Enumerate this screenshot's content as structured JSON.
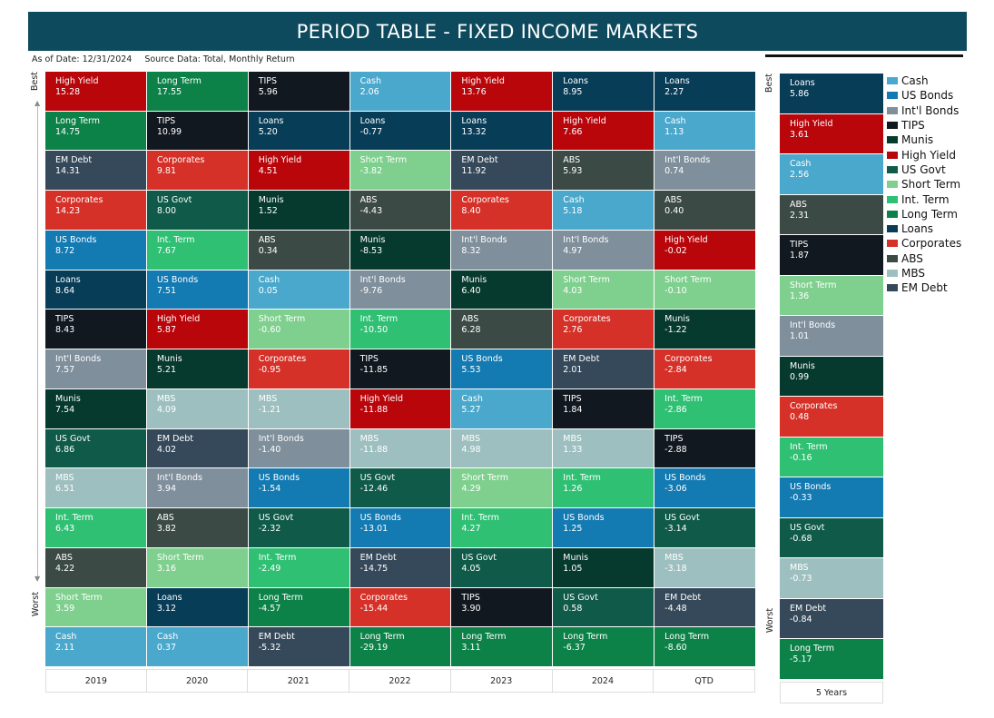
{
  "title": "PERIOD TABLE - FIXED INCOME MARKETS",
  "as_of": "As of Date: 12/31/2024",
  "source": "Source Data: Total, Monthly Return",
  "axis": {
    "best": "Best",
    "worst": "Worst"
  },
  "colors": {
    "Cash": "#4aa8cc",
    "US Bonds": "#137ab2",
    "Int'l Bonds": "#7f8f9c",
    "TIPS": "#12181f",
    "Munis": "#073a2e",
    "High Yield": "#b8060b",
    "US Govt": "#0f5a48",
    "Short Term": "#7fd08e",
    "Int. Term": "#30c074",
    "Long Term": "#0d8248",
    "Loans": "#083d58",
    "Corporates": "#d53128",
    "ABS": "#3c4a46",
    "MBS": "#9ebfbf",
    "EM Debt": "#36495a"
  },
  "legend": [
    "Cash",
    "US Bonds",
    "Int'l Bonds",
    "TIPS",
    "Munis",
    "High Yield",
    "US Govt",
    "Short Term",
    "Int. Term",
    "Long Term",
    "Loans",
    "Corporates",
    "ABS",
    "MBS",
    "EM Debt"
  ],
  "chart_data": {
    "type": "table",
    "title": "PERIOD TABLE - FIXED INCOME MARKETS",
    "columns": [
      {
        "label": "2019",
        "items": [
          {
            "name": "High Yield",
            "value": "15.28"
          },
          {
            "name": "Long Term",
            "value": "14.75"
          },
          {
            "name": "EM Debt",
            "value": "14.31"
          },
          {
            "name": "Corporates",
            "value": "14.23"
          },
          {
            "name": "US Bonds",
            "value": "8.72"
          },
          {
            "name": "Loans",
            "value": "8.64"
          },
          {
            "name": "TIPS",
            "value": "8.43"
          },
          {
            "name": "Int'l Bonds",
            "value": "7.57"
          },
          {
            "name": "Munis",
            "value": "7.54"
          },
          {
            "name": "US Govt",
            "value": "6.86"
          },
          {
            "name": "MBS",
            "value": "6.51"
          },
          {
            "name": "Int. Term",
            "value": "6.43"
          },
          {
            "name": "ABS",
            "value": "4.22"
          },
          {
            "name": "Short Term",
            "value": "3.59"
          },
          {
            "name": "Cash",
            "value": "2.11"
          }
        ]
      },
      {
        "label": "2020",
        "items": [
          {
            "name": "Long Term",
            "value": "17.55"
          },
          {
            "name": "TIPS",
            "value": "10.99"
          },
          {
            "name": "Corporates",
            "value": "9.81"
          },
          {
            "name": "US Govt",
            "value": "8.00"
          },
          {
            "name": "Int. Term",
            "value": "7.67"
          },
          {
            "name": "US Bonds",
            "value": "7.51"
          },
          {
            "name": "High Yield",
            "value": "5.87"
          },
          {
            "name": "Munis",
            "value": "5.21"
          },
          {
            "name": "MBS",
            "value": "4.09"
          },
          {
            "name": "EM Debt",
            "value": "4.02"
          },
          {
            "name": "Int'l Bonds",
            "value": "3.94"
          },
          {
            "name": "ABS",
            "value": "3.82"
          },
          {
            "name": "Short Term",
            "value": "3.16"
          },
          {
            "name": "Loans",
            "value": "3.12"
          },
          {
            "name": "Cash",
            "value": "0.37"
          }
        ]
      },
      {
        "label": "2021",
        "items": [
          {
            "name": "TIPS",
            "value": "5.96"
          },
          {
            "name": "Loans",
            "value": "5.20"
          },
          {
            "name": "High Yield",
            "value": "4.51"
          },
          {
            "name": "Munis",
            "value": "1.52"
          },
          {
            "name": "ABS",
            "value": "0.34"
          },
          {
            "name": "Cash",
            "value": "0.05"
          },
          {
            "name": "Short Term",
            "value": "-0.60"
          },
          {
            "name": "Corporates",
            "value": "-0.95"
          },
          {
            "name": "MBS",
            "value": "-1.21"
          },
          {
            "name": "Int'l Bonds",
            "value": "-1.40"
          },
          {
            "name": "US Bonds",
            "value": "-1.54"
          },
          {
            "name": "US Govt",
            "value": "-2.32"
          },
          {
            "name": "Int. Term",
            "value": "-2.49"
          },
          {
            "name": "Long Term",
            "value": "-4.57"
          },
          {
            "name": "EM Debt",
            "value": "-5.32"
          }
        ]
      },
      {
        "label": "2022",
        "items": [
          {
            "name": "Cash",
            "value": "2.06"
          },
          {
            "name": "Loans",
            "value": "-0.77"
          },
          {
            "name": "Short Term",
            "value": "-3.82"
          },
          {
            "name": "ABS",
            "value": "-4.43"
          },
          {
            "name": "Munis",
            "value": "-8.53"
          },
          {
            "name": "Int'l Bonds",
            "value": "-9.76"
          },
          {
            "name": "Int. Term",
            "value": "-10.50"
          },
          {
            "name": "TIPS",
            "value": "-11.85"
          },
          {
            "name": "High Yield",
            "value": "-11.88"
          },
          {
            "name": "MBS",
            "value": "-11.88"
          },
          {
            "name": "US Govt",
            "value": "-12.46"
          },
          {
            "name": "US Bonds",
            "value": "-13.01"
          },
          {
            "name": "EM Debt",
            "value": "-14.75"
          },
          {
            "name": "Corporates",
            "value": "-15.44"
          },
          {
            "name": "Long Term",
            "value": "-29.19"
          }
        ]
      },
      {
        "label": "2023",
        "items": [
          {
            "name": "High Yield",
            "value": "13.76"
          },
          {
            "name": "Loans",
            "value": "13.32"
          },
          {
            "name": "EM Debt",
            "value": "11.92"
          },
          {
            "name": "Corporates",
            "value": "8.40"
          },
          {
            "name": "Int'l Bonds",
            "value": "8.32"
          },
          {
            "name": "Munis",
            "value": "6.40"
          },
          {
            "name": "ABS",
            "value": "6.28"
          },
          {
            "name": "US Bonds",
            "value": "5.53"
          },
          {
            "name": "Cash",
            "value": "5.27"
          },
          {
            "name": "MBS",
            "value": "4.98"
          },
          {
            "name": "Short Term",
            "value": "4.29"
          },
          {
            "name": "Int. Term",
            "value": "4.27"
          },
          {
            "name": "US Govt",
            "value": "4.05"
          },
          {
            "name": "TIPS",
            "value": "3.90"
          },
          {
            "name": "Long Term",
            "value": "3.11"
          }
        ]
      },
      {
        "label": "2024",
        "items": [
          {
            "name": "Loans",
            "value": "8.95"
          },
          {
            "name": "High Yield",
            "value": "7.66"
          },
          {
            "name": "ABS",
            "value": "5.93"
          },
          {
            "name": "Cash",
            "value": "5.18"
          },
          {
            "name": "Int'l Bonds",
            "value": "4.97"
          },
          {
            "name": "Short Term",
            "value": "4.03"
          },
          {
            "name": "Corporates",
            "value": "2.76"
          },
          {
            "name": "EM Debt",
            "value": "2.01"
          },
          {
            "name": "TIPS",
            "value": "1.84"
          },
          {
            "name": "MBS",
            "value": "1.33"
          },
          {
            "name": "Int. Term",
            "value": "1.26"
          },
          {
            "name": "US Bonds",
            "value": "1.25"
          },
          {
            "name": "Munis",
            "value": "1.05"
          },
          {
            "name": "US Govt",
            "value": "0.58"
          },
          {
            "name": "Long Term",
            "value": "-6.37"
          }
        ]
      },
      {
        "label": "QTD",
        "items": [
          {
            "name": "Loans",
            "value": "2.27"
          },
          {
            "name": "Cash",
            "value": "1.13"
          },
          {
            "name": "Int'l Bonds",
            "value": "0.74"
          },
          {
            "name": "ABS",
            "value": "0.40"
          },
          {
            "name": "High Yield",
            "value": "-0.02"
          },
          {
            "name": "Short Term",
            "value": "-0.10"
          },
          {
            "name": "Munis",
            "value": "-1.22"
          },
          {
            "name": "Corporates",
            "value": "-2.84"
          },
          {
            "name": "Int. Term",
            "value": "-2.86"
          },
          {
            "name": "TIPS",
            "value": "-2.88"
          },
          {
            "name": "US Bonds",
            "value": "-3.06"
          },
          {
            "name": "US Govt",
            "value": "-3.14"
          },
          {
            "name": "MBS",
            "value": "-3.18"
          },
          {
            "name": "EM Debt",
            "value": "-4.48"
          },
          {
            "name": "Long Term",
            "value": "-8.60"
          }
        ]
      }
    ],
    "five_year": {
      "label": "5 Years",
      "items": [
        {
          "name": "Loans",
          "value": "5.86"
        },
        {
          "name": "High Yield",
          "value": "3.61"
        },
        {
          "name": "Cash",
          "value": "2.56"
        },
        {
          "name": "ABS",
          "value": "2.31"
        },
        {
          "name": "TIPS",
          "value": "1.87"
        },
        {
          "name": "Short Term",
          "value": "1.36"
        },
        {
          "name": "Int'l Bonds",
          "value": "1.01"
        },
        {
          "name": "Munis",
          "value": "0.99"
        },
        {
          "name": "Corporates",
          "value": "0.48"
        },
        {
          "name": "Int. Term",
          "value": "-0.16"
        },
        {
          "name": "US Bonds",
          "value": "-0.33"
        },
        {
          "name": "US Govt",
          "value": "-0.68"
        },
        {
          "name": "MBS",
          "value": "-0.73"
        },
        {
          "name": "EM Debt",
          "value": "-0.84"
        },
        {
          "name": "Long Term",
          "value": "-5.17"
        }
      ]
    }
  }
}
